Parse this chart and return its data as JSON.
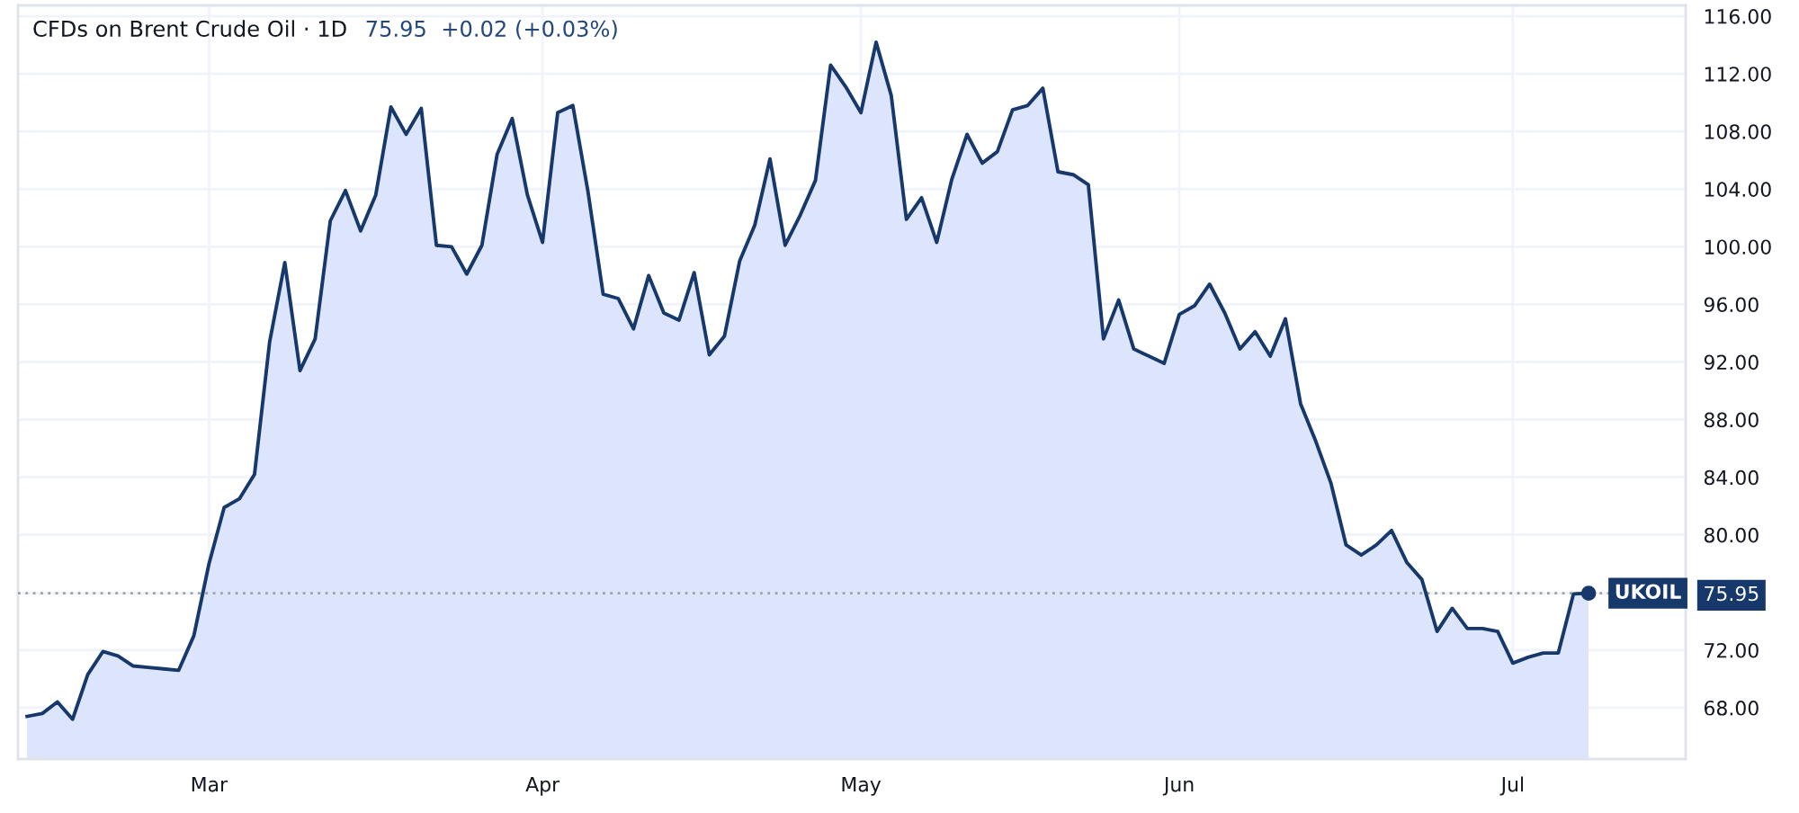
{
  "chart_data": {
    "type": "area",
    "title": "CFDs on Brent Crude Oil · 1D",
    "subtitle": "75.95  +0.02 (+0.03%)",
    "categories": [
      null,
      null,
      null,
      null,
      null,
      null,
      null,
      null,
      null,
      null,
      null,
      null,
      "Mar",
      null,
      null,
      null,
      null,
      null,
      null,
      null,
      null,
      null,
      null,
      null,
      null,
      null,
      null,
      null,
      null,
      null,
      null,
      null,
      null,
      null,
      "Apr",
      null,
      null,
      null,
      null,
      null,
      null,
      null,
      null,
      null,
      null,
      null,
      null,
      null,
      null,
      null,
      null,
      null,
      null,
      null,
      null,
      "May",
      null,
      null,
      null,
      null,
      null,
      null,
      null,
      null,
      null,
      null,
      null,
      null,
      null,
      null,
      null,
      null,
      null,
      null,
      null,
      null,
      "Jun",
      null,
      null,
      null,
      null,
      null,
      null,
      null,
      null,
      null,
      null,
      null,
      null,
      null,
      null,
      null,
      null,
      null,
      null,
      null,
      null,
      null,
      "Jul",
      null,
      null,
      null,
      null,
      null
    ],
    "values": [
      67.4,
      67.6,
      68.4,
      67.2,
      70.3,
      71.9,
      71.6,
      70.9,
      70.8,
      70.7,
      70.6,
      73.0,
      78.0,
      81.9,
      82.5,
      84.2,
      93.4,
      98.9,
      91.4,
      93.6,
      101.8,
      103.9,
      101.1,
      103.6,
      109.7,
      107.8,
      109.6,
      100.1,
      100.0,
      98.1,
      100.1,
      106.4,
      108.9,
      103.6,
      100.3,
      109.3,
      109.8,
      103.8,
      96.7,
      96.4,
      94.3,
      98.0,
      95.4,
      94.9,
      98.2,
      92.5,
      93.8,
      99.0,
      101.5,
      106.1,
      100.1,
      102.2,
      104.6,
      112.6,
      111.1,
      109.3,
      114.2,
      110.5,
      101.9,
      103.4,
      100.3,
      104.7,
      107.8,
      105.8,
      106.6,
      109.5,
      109.8,
      111.0,
      105.2,
      105.0,
      104.3,
      93.6,
      96.3,
      92.9,
      92.4,
      91.9,
      95.3,
      95.9,
      97.4,
      95.4,
      92.9,
      94.1,
      92.4,
      95.0,
      89.1,
      86.5,
      83.6,
      79.3,
      78.6,
      79.3,
      80.3,
      78.1,
      76.9,
      73.3,
      74.9,
      73.5,
      73.5,
      73.3,
      71.1,
      71.5,
      71.8,
      71.8,
      75.9,
      75.95
    ],
    "color": "#16386b",
    "ylim": [
      64.44,
      116.75
    ],
    "yticks": [
      {
        "value": 68,
        "label": "68.00"
      },
      {
        "value": 72,
        "label": "72.00"
      },
      {
        "value": 75.95,
        "label": "75.95"
      },
      {
        "value": 80,
        "label": "80.00"
      },
      {
        "value": 84,
        "label": "84.00"
      },
      {
        "value": 88,
        "label": "88.00"
      },
      {
        "value": 92,
        "label": "92.00"
      },
      {
        "value": 96,
        "label": "96.00"
      },
      {
        "value": 100,
        "label": "100.00"
      },
      {
        "value": 104,
        "label": "104.00"
      },
      {
        "value": 108,
        "label": "108.00"
      },
      {
        "value": 112,
        "label": "112.00"
      },
      {
        "value": 116,
        "label": "116.00"
      }
    ],
    "grid": true,
    "ref_lines": [
      {
        "axis": "y",
        "value": 75.95,
        "label": "UKOIL",
        "color": "#9aa1ad",
        "line_style": "dotted"
      }
    ]
  }
}
